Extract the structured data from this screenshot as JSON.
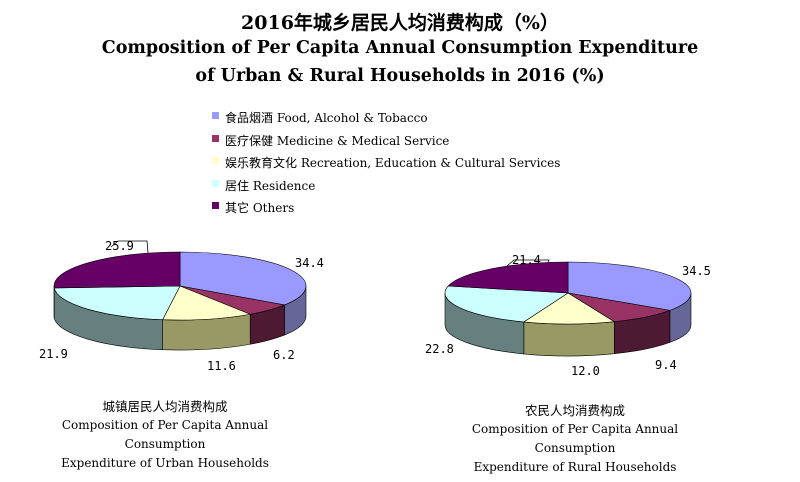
{
  "title": {
    "zh": "2016年城乡居民人均消费构成（%）",
    "en_line1": "Composition of Per Capita Annual Consumption Expenditure",
    "en_line2": "of Urban & Rural Households in 2016 (%)"
  },
  "legend": [
    {
      "zh": "食品烟酒",
      "en": "Food, Alcohol & Tobacco",
      "color": "#9999ff"
    },
    {
      "zh": "医疗保健",
      "en": "Medicine & Medical Service",
      "color": "#993366"
    },
    {
      "zh": "娱乐教育文化",
      "en": "Recreation, Education & Cultural Services",
      "color": "#ffffcc"
    },
    {
      "zh": "居住",
      "en": "Residence",
      "color": "#ccffff"
    },
    {
      "zh": "其它",
      "en": "Others",
      "color": "#660066"
    }
  ],
  "chart_data": [
    {
      "type": "pie",
      "categories": [
        "食品烟酒 Food, Alcohol & Tobacco",
        "医疗保健 Medicine & Medical Service",
        "娱乐教育文化 Recreation, Education & Cultural Services",
        "居住 Residence",
        "其它 Others"
      ],
      "values": [
        34.4,
        6.2,
        11.6,
        21.9,
        25.9
      ],
      "labels": [
        "34.4",
        "6.2",
        "11.6",
        "21.9",
        "25.9"
      ],
      "caption_zh": "城镇居民人均消费构成",
      "caption_en_line1": "Composition of Per Capita Annual Consumption",
      "caption_en_line2": "Expenditure of Urban  Households",
      "style": "3d"
    },
    {
      "type": "pie",
      "categories": [
        "食品烟酒 Food, Alcohol & Tobacco",
        "医疗保健 Medicine & Medical Service",
        "娱乐教育文化 Recreation, Education & Cultural Services",
        "居住 Residence",
        "其它 Others"
      ],
      "values": [
        34.5,
        9.4,
        12.0,
        22.8,
        21.4
      ],
      "labels": [
        "34.5",
        "9.4",
        "12.0",
        "22.8",
        "21.4"
      ],
      "caption_zh": "农民人均消费构成",
      "caption_en_line1": "Composition of Per Capita Annual Consumption",
      "caption_en_line2": "Expenditure of Rural  Households",
      "style": "3d"
    }
  ]
}
